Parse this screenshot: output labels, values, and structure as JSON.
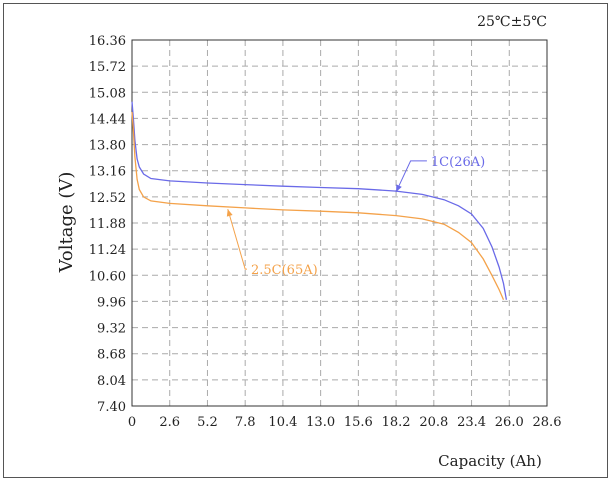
{
  "chart_data": {
    "type": "line",
    "condition": "25℃±5℃",
    "xlabel": "Capacity (Ah)",
    "ylabel": "Voltage (V)",
    "xlim": [
      0,
      28.6
    ],
    "ylim": [
      7.4,
      16.36
    ],
    "x_ticks": [
      "0",
      "2.6",
      "5.2",
      "7.8",
      "10.4",
      "13.0",
      "15.6",
      "18.2",
      "20.8",
      "23.4",
      "26.0",
      "28.6"
    ],
    "y_ticks": [
      "16.36",
      "15.72",
      "15.08",
      "14.44",
      "13.80",
      "13.16",
      "12.52",
      "11.88",
      "11.24",
      "10.60",
      "9.96",
      "9.32",
      "8.68",
      "8.04",
      "7.40"
    ],
    "grid": true,
    "series": [
      {
        "name": "1C(26A)",
        "color": "#6a6ae8",
        "points": [
          [
            0.0,
            14.85
          ],
          [
            0.1,
            14.4
          ],
          [
            0.2,
            13.9
          ],
          [
            0.35,
            13.45
          ],
          [
            0.5,
            13.25
          ],
          [
            0.8,
            13.08
          ],
          [
            1.3,
            12.97
          ],
          [
            2.6,
            12.91
          ],
          [
            5.2,
            12.86
          ],
          [
            7.8,
            12.82
          ],
          [
            10.4,
            12.78
          ],
          [
            13.0,
            12.75
          ],
          [
            15.6,
            12.72
          ],
          [
            18.2,
            12.66
          ],
          [
            20.0,
            12.58
          ],
          [
            21.5,
            12.45
          ],
          [
            22.5,
            12.3
          ],
          [
            23.4,
            12.1
          ],
          [
            24.2,
            11.75
          ],
          [
            24.8,
            11.3
          ],
          [
            25.3,
            10.8
          ],
          [
            25.6,
            10.4
          ],
          [
            25.8,
            10.0
          ]
        ]
      },
      {
        "name": "2.5C(65A)",
        "color": "#f4a24a",
        "points": [
          [
            0.0,
            14.6
          ],
          [
            0.1,
            14.1
          ],
          [
            0.2,
            13.5
          ],
          [
            0.35,
            12.95
          ],
          [
            0.5,
            12.7
          ],
          [
            0.8,
            12.52
          ],
          [
            1.3,
            12.42
          ],
          [
            2.6,
            12.36
          ],
          [
            5.2,
            12.3
          ],
          [
            7.8,
            12.25
          ],
          [
            10.4,
            12.2
          ],
          [
            13.0,
            12.17
          ],
          [
            15.6,
            12.13
          ],
          [
            18.2,
            12.06
          ],
          [
            20.0,
            11.98
          ],
          [
            21.5,
            11.85
          ],
          [
            22.5,
            11.65
          ],
          [
            23.4,
            11.4
          ],
          [
            24.2,
            11.0
          ],
          [
            24.8,
            10.6
          ],
          [
            25.3,
            10.25
          ],
          [
            25.6,
            10.0
          ]
        ]
      }
    ],
    "annotations": [
      {
        "text": "1C(26A)",
        "series": 0
      },
      {
        "text": "2.5C(65A)",
        "series": 1
      }
    ]
  }
}
